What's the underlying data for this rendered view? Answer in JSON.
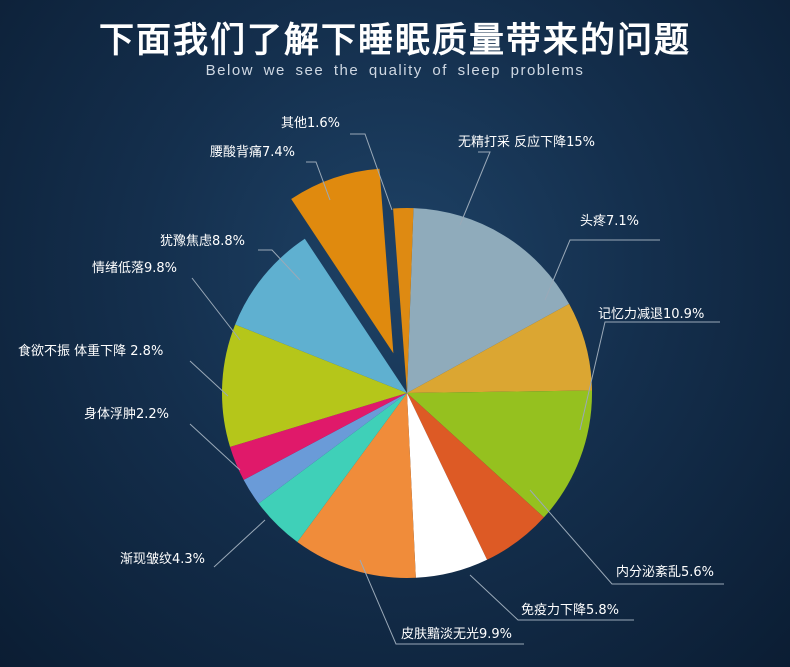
{
  "header": {
    "title": "下面我们了解下睡眠质量带来的问题",
    "subtitle": "Below we see the quality of sleep problems"
  },
  "chart_data": {
    "type": "pie",
    "title": "下面我们了解下睡眠质量带来的问题",
    "subtitle": "Below we see the quality of sleep problems",
    "slices": [
      {
        "label": "无精打采 反应下降15%",
        "name": "无精打采 反应下降",
        "value": 15,
        "color": "#8fabbb"
      },
      {
        "label": "头疼7.1%",
        "name": "头疼",
        "value": 7.1,
        "color": "#dba632"
      },
      {
        "label": "记忆力减退10.9%",
        "name": "记忆力减退",
        "value": 10.9,
        "color": "#95c11f"
      },
      {
        "label": "内分泌紊乱5.6%",
        "name": "内分泌紊乱",
        "value": 5.6,
        "color": "#dd5a25"
      },
      {
        "label": "免疫力下降5.8%",
        "name": "免疫力下降",
        "value": 5.8,
        "color": "#ffffff"
      },
      {
        "label": "皮肤黯淡无光9.9%",
        "name": "皮肤黯淡无光",
        "value": 9.9,
        "color": "#f08c3a"
      },
      {
        "label": "渐现皱纹4.3%",
        "name": "渐现皱纹",
        "value": 4.3,
        "color": "#3fd0b8"
      },
      {
        "label": "身体浮肿2.2%",
        "name": "身体浮肿",
        "value": 2.2,
        "color": "#6a9bd8"
      },
      {
        "label": "食欲不振 体重下降 2.8%",
        "name": "食欲不振 体重下降",
        "value": 2.8,
        "color": "#e0196a"
      },
      {
        "label": "情绪低落9.8%",
        "name": "情绪低落",
        "value": 9.8,
        "color": "#b5c61a"
      },
      {
        "label": "犹豫焦虑8.8%",
        "name": "犹豫焦虑",
        "value": 8.8,
        "color": "#5fb0d0"
      },
      {
        "label": "腰酸背痛7.4%",
        "name": "腰酸背痛",
        "value": 7.4,
        "color": "#e08a0e",
        "exploded": true
      },
      {
        "label": "其他1.6%",
        "name": "其他",
        "value": 1.6,
        "color": "#de8a12"
      }
    ]
  }
}
